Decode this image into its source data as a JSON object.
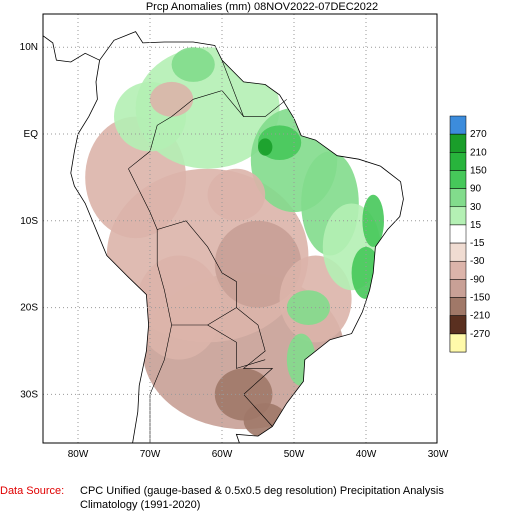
{
  "title": "Prcp Anomalies (mm) 08NOV2022-07DEC2022",
  "map": {
    "lat_labels": [
      "10N",
      "EQ",
      "10S",
      "20S",
      "30S"
    ],
    "lon_labels": [
      "80W",
      "70W",
      "60W",
      "50W",
      "40W",
      "30W"
    ]
  },
  "colorbar": {
    "labels": [
      "270",
      "210",
      "150",
      "90",
      "30",
      "15",
      "-15",
      "-30",
      "-90",
      "-150",
      "-210",
      "-270"
    ]
  },
  "footer": {
    "source_label": "Data Source:",
    "source_text": "CPC Unified (gauge-based & 0.5x0.5 deg resolution) Precipitation Analysis",
    "climatology": "Climatology (1991-2020)"
  }
}
